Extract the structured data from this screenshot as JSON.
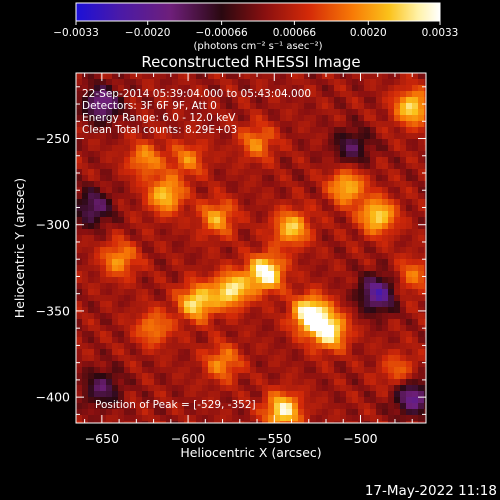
{
  "chart_data": {
    "type": "heatmap",
    "title": "Reconstructed RHESSI Image",
    "xlabel": "Heliocentric X (arcsec)",
    "ylabel": "Heliocentric Y (arcsec)",
    "xlim": [
      -665,
      -462
    ],
    "ylim": [
      -415,
      -212
    ],
    "x_ticks": [
      -650,
      -600,
      -550,
      -500
    ],
    "x_tick_labels": [
      "−650",
      "−600",
      "−550",
      "−500"
    ],
    "y_ticks": [
      -250,
      -300,
      -350,
      -400
    ],
    "y_tick_labels": [
      "−250",
      "−300",
      "−350",
      "−400"
    ],
    "grid": false,
    "colorbar": {
      "min": -0.0033,
      "max": 0.0033,
      "ticks": [
        -0.0033,
        -0.002,
        -0.00066,
        0.00066,
        0.002,
        0.0033
      ],
      "tick_labels": [
        "−0.0033",
        "−0.0020",
        "−0.00066",
        "0.00066",
        "0.0020",
        "0.0033"
      ],
      "units": "(photons cm⁻² s⁻¹ asec⁻²)",
      "colors": [
        "#1b10d8",
        "#4a1aa8",
        "#6e1f7a",
        "#2a0810",
        "#8a1010",
        "#d42a08",
        "#f87a06",
        "#fbc21a",
        "#fff2a8",
        "#ffffff"
      ]
    },
    "annotations": [
      "22-Sep-2014 05:39:04.000 to 05:43:04.000",
      "Detectors: 3F 6F 9F, Att 0",
      "Energy Range: 6.0 - 12.0 keV",
      "Clean     Total counts: 8.29E+03"
    ],
    "peak_label": "Position of Peak = [-529, -352]",
    "peak": {
      "x": -529,
      "y": -352
    },
    "hotspots": [
      {
        "x": -555,
        "y": -328,
        "value": 0.0031
      },
      {
        "x": -529,
        "y": -352,
        "value": 0.0033
      },
      {
        "x": -575,
        "y": -338,
        "value": 0.0026
      },
      {
        "x": -595,
        "y": -345,
        "value": 0.0025
      },
      {
        "x": -518,
        "y": -362,
        "value": 0.0027
      },
      {
        "x": -540,
        "y": -302,
        "value": 0.0022
      },
      {
        "x": -490,
        "y": -295,
        "value": 0.0024
      },
      {
        "x": -508,
        "y": -278,
        "value": 0.0021
      },
      {
        "x": -613,
        "y": -283,
        "value": 0.0022
      },
      {
        "x": -583,
        "y": -296,
        "value": 0.0018
      },
      {
        "x": -470,
        "y": -232,
        "value": 0.0024
      },
      {
        "x": -545,
        "y": -408,
        "value": 0.0027
      },
      {
        "x": -625,
        "y": -262,
        "value": 0.0016
      },
      {
        "x": -600,
        "y": -262,
        "value": 0.0014
      },
      {
        "x": -560,
        "y": -252,
        "value": 0.0015
      },
      {
        "x": -640,
        "y": -320,
        "value": 0.0017
      },
      {
        "x": -620,
        "y": -360,
        "value": 0.0015
      },
      {
        "x": -580,
        "y": -380,
        "value": 0.0016
      },
      {
        "x": -470,
        "y": -330,
        "value": 0.0013
      },
      {
        "x": -478,
        "y": -385,
        "value": 0.0012
      }
    ],
    "coldspots": [
      {
        "x": -650,
        "y": -230,
        "value": -0.0022
      },
      {
        "x": -490,
        "y": -340,
        "value": -0.0025
      },
      {
        "x": -470,
        "y": -400,
        "value": -0.0022
      },
      {
        "x": -655,
        "y": -290,
        "value": -0.0018
      },
      {
        "x": -505,
        "y": -255,
        "value": -0.0015
      },
      {
        "x": -650,
        "y": -395,
        "value": -0.0016
      }
    ]
  },
  "footer": {
    "timestamp": "17-May-2022 11:18"
  }
}
